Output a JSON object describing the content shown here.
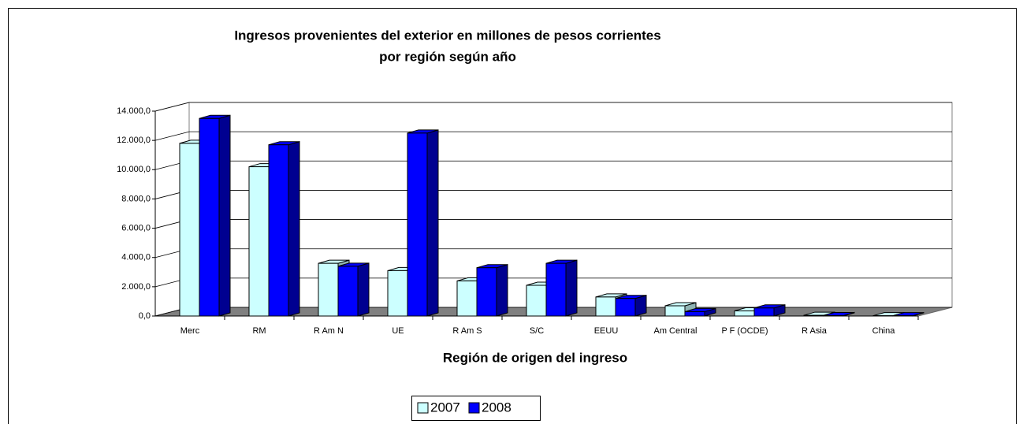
{
  "chart_data": {
    "type": "bar3d",
    "title": [
      "Ingresos provenientes del exterior en millones de pesos corrientes",
      "por región según año"
    ],
    "x_label": "Región de origen del ingreso",
    "categories": [
      "Merc",
      "RM",
      "R Am N",
      "UE",
      "R Am S",
      "S/C",
      "EEUU",
      "Am Central",
      "P F (OCDE)",
      "R Asia",
      "China"
    ],
    "series": [
      {
        "name": "2007",
        "color": "#ccffff",
        "side": "#8fb3b3",
        "values": [
          11800,
          10200,
          3600,
          3100,
          2400,
          2100,
          1300,
          700,
          350,
          50,
          20
        ]
      },
      {
        "name": "2008",
        "color": "#0000ff",
        "side": "#000090",
        "values": [
          13500,
          11700,
          3400,
          12500,
          3300,
          3600,
          1200,
          300,
          550,
          30,
          20
        ]
      }
    ],
    "ylim": [
      0,
      14000
    ],
    "yticks": [
      {
        "value": 0,
        "label": "0,0"
      },
      {
        "value": 2000,
        "label": "2.000,0"
      },
      {
        "value": 4000,
        "label": "4.000,0"
      },
      {
        "value": 6000,
        "label": "6.000,0"
      },
      {
        "value": 8000,
        "label": "8.000,0"
      },
      {
        "value": 10000,
        "label": "10.000,0"
      },
      {
        "value": 12000,
        "label": "12.000,0"
      },
      {
        "value": 14000,
        "label": "14.000,0"
      }
    ],
    "grid": true
  }
}
